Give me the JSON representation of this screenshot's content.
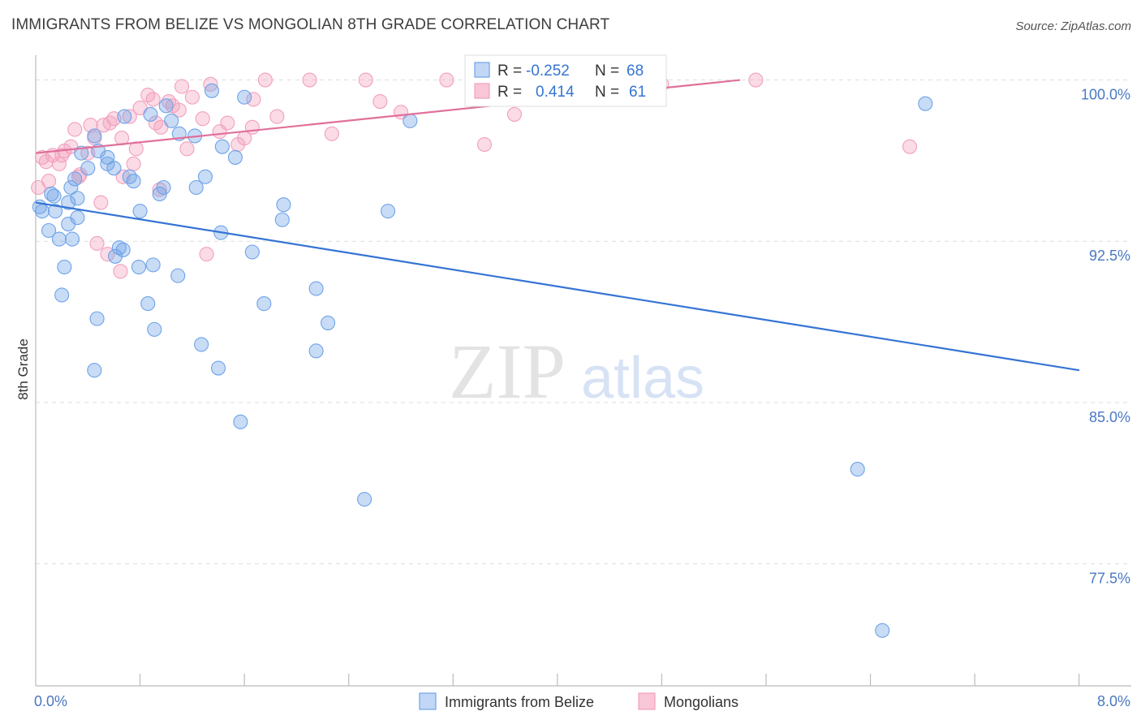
{
  "header": {
    "title": "IMMIGRANTS FROM BELIZE VS MONGOLIAN 8TH GRADE CORRELATION CHART",
    "source": "Source: ZipAtlas.com"
  },
  "watermark": {
    "zip": "ZIP",
    "atlas": "atlas"
  },
  "stats": {
    "rows": [
      {
        "r_label": "R =",
        "r_value": "-0.252",
        "n_label": "N =",
        "n_value": "68"
      },
      {
        "r_label": "R =",
        "r_value": "0.414",
        "n_label": "N =",
        "n_value": "61"
      }
    ]
  },
  "colors": {
    "blue": "#6fa3e8",
    "blue_line": "#3574d4",
    "pink": "#f2a0bd",
    "pink_line": "#e0709a",
    "tick_text": "#4a78c2",
    "grid": "#dddddd"
  },
  "chart_data": {
    "type": "scatter",
    "title": "IMMIGRANTS FROM BELIZE VS MONGOLIAN 8TH GRADE CORRELATION CHART",
    "xlabel": "",
    "ylabel": "8th Grade",
    "xlim": [
      0,
      8
    ],
    "ylim": [
      71.9,
      100.7
    ],
    "x_tick_labels": [
      {
        "value": 0,
        "label": "0.0%"
      },
      {
        "value": 8,
        "label": "8.0%"
      }
    ],
    "y_ticks": [
      {
        "value": 100,
        "label": "100.0%"
      },
      {
        "value": 92.5,
        "label": "92.5%"
      },
      {
        "value": 85,
        "label": "85.0%"
      },
      {
        "value": 77.5,
        "label": "77.5%"
      }
    ],
    "legend_position": "bottom-center",
    "series": [
      {
        "name": "Immigrants from Belize",
        "color": "#6fa3e8",
        "trend": {
          "x0": 0,
          "y0": 94.3,
          "x1": 8,
          "y1": 86.5
        },
        "points": [
          [
            0.03,
            94.1
          ],
          [
            0.05,
            93.9
          ],
          [
            0.1,
            93.0
          ],
          [
            0.12,
            94.7
          ],
          [
            0.15,
            93.9
          ],
          [
            0.18,
            92.6
          ],
          [
            0.22,
            91.3
          ],
          [
            0.2,
            90.0
          ],
          [
            0.14,
            94.6
          ],
          [
            0.25,
            94.3
          ],
          [
            0.27,
            95.0
          ],
          [
            0.32,
            94.5
          ],
          [
            0.3,
            95.4
          ],
          [
            0.35,
            96.6
          ],
          [
            0.4,
            95.9
          ],
          [
            0.45,
            97.4
          ],
          [
            0.48,
            96.7
          ],
          [
            0.55,
            96.1
          ],
          [
            0.6,
            95.9
          ],
          [
            0.68,
            98.3
          ],
          [
            0.72,
            95.5
          ],
          [
            0.75,
            95.3
          ],
          [
            0.8,
            93.9
          ],
          [
            0.88,
            98.4
          ],
          [
            0.95,
            94.7
          ],
          [
            0.98,
            95.0
          ],
          [
            1.0,
            98.8
          ],
          [
            1.04,
            98.1
          ],
          [
            1.1,
            97.5
          ],
          [
            1.22,
            97.4
          ],
          [
            1.23,
            95.0
          ],
          [
            1.3,
            95.5
          ],
          [
            1.35,
            99.5
          ],
          [
            1.42,
            92.9
          ],
          [
            1.43,
            96.9
          ],
          [
            1.53,
            96.4
          ],
          [
            1.6,
            99.2
          ],
          [
            1.66,
            92.0
          ],
          [
            1.4,
            86.6
          ],
          [
            1.75,
            89.6
          ],
          [
            1.27,
            87.7
          ],
          [
            1.09,
            90.9
          ],
          [
            0.9,
            91.4
          ],
          [
            0.86,
            89.6
          ],
          [
            0.91,
            88.4
          ],
          [
            0.79,
            91.3
          ],
          [
            0.67,
            92.1
          ],
          [
            0.64,
            92.2
          ],
          [
            0.61,
            91.8
          ],
          [
            0.55,
            96.4
          ],
          [
            0.47,
            88.9
          ],
          [
            0.45,
            86.5
          ],
          [
            0.32,
            93.6
          ],
          [
            0.28,
            92.6
          ],
          [
            1.57,
            84.1
          ],
          [
            1.89,
            93.5
          ],
          [
            1.9,
            94.2
          ],
          [
            2.15,
            90.3
          ],
          [
            2.15,
            87.4
          ],
          [
            2.24,
            88.7
          ],
          [
            2.52,
            80.5
          ],
          [
            2.7,
            93.9
          ],
          [
            2.87,
            98.1
          ],
          [
            4.75,
            99.9
          ],
          [
            6.3,
            81.9
          ],
          [
            6.49,
            74.4
          ],
          [
            6.82,
            98.9
          ],
          [
            0.25,
            93.3
          ]
        ]
      },
      {
        "name": "Mongolians",
        "color": "#f2a0bd",
        "trend": {
          "x0": 0,
          "y0": 96.6,
          "x1": 5.4,
          "y1": 100.0
        },
        "points": [
          [
            0.02,
            95.0
          ],
          [
            0.05,
            96.4
          ],
          [
            0.08,
            96.2
          ],
          [
            0.13,
            96.5
          ],
          [
            0.18,
            96.1
          ],
          [
            0.22,
            96.7
          ],
          [
            0.27,
            96.9
          ],
          [
            0.3,
            97.7
          ],
          [
            0.34,
            95.6
          ],
          [
            0.4,
            96.6
          ],
          [
            0.45,
            97.3
          ],
          [
            0.52,
            97.9
          ],
          [
            0.57,
            98.0
          ],
          [
            0.6,
            98.2
          ],
          [
            0.66,
            97.3
          ],
          [
            0.72,
            98.3
          ],
          [
            0.77,
            96.8
          ],
          [
            0.8,
            98.7
          ],
          [
            0.86,
            99.3
          ],
          [
            0.92,
            98.0
          ],
          [
            0.96,
            97.8
          ],
          [
            0.9,
            99.1
          ],
          [
            1.05,
            98.8
          ],
          [
            1.12,
            99.7
          ],
          [
            1.2,
            99.2
          ],
          [
            1.28,
            98.2
          ],
          [
            1.34,
            99.8
          ],
          [
            1.41,
            97.6
          ],
          [
            1.47,
            98.0
          ],
          [
            1.55,
            97.0
          ],
          [
            1.66,
            97.8
          ],
          [
            1.67,
            99.1
          ],
          [
            1.76,
            100.0
          ],
          [
            1.85,
            98.3
          ],
          [
            2.1,
            100.0
          ],
          [
            2.27,
            97.5
          ],
          [
            2.53,
            100.0
          ],
          [
            2.64,
            99.0
          ],
          [
            2.8,
            98.5
          ],
          [
            3.15,
            100.0
          ],
          [
            3.44,
            97.0
          ],
          [
            3.67,
            98.4
          ],
          [
            4.8,
            99.8
          ],
          [
            5.52,
            100.0
          ],
          [
            6.7,
            96.9
          ],
          [
            0.33,
            95.5
          ],
          [
            0.47,
            92.4
          ],
          [
            0.55,
            91.9
          ],
          [
            0.65,
            91.1
          ],
          [
            0.75,
            96.1
          ],
          [
            0.95,
            94.9
          ],
          [
            1.16,
            96.8
          ],
          [
            1.31,
            91.9
          ],
          [
            1.02,
            99.0
          ],
          [
            0.2,
            96.5
          ],
          [
            0.1,
            95.3
          ],
          [
            0.42,
            97.9
          ],
          [
            0.67,
            95.5
          ],
          [
            1.1,
            98.6
          ],
          [
            1.6,
            97.3
          ],
          [
            0.5,
            94.3
          ]
        ]
      }
    ]
  }
}
